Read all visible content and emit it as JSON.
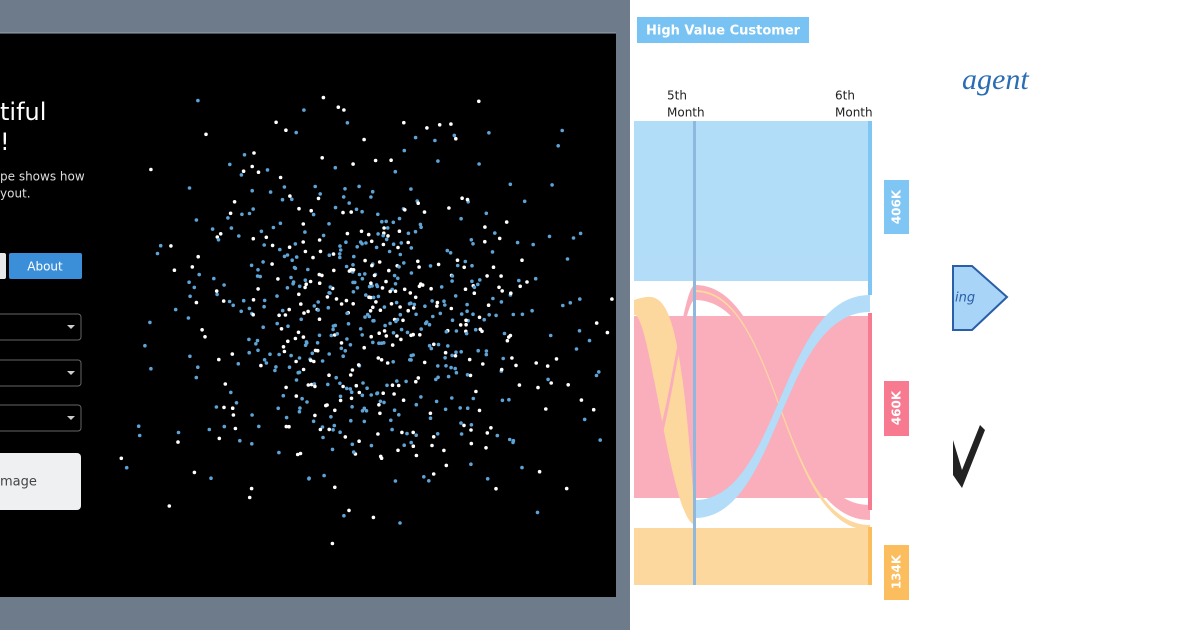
{
  "left_panel": {
    "heading_lines": [
      "tiful",
      "!"
    ],
    "description_lines": [
      "pe shows how",
      "yout."
    ],
    "button": "About",
    "image_button": "mage"
  },
  "sankey": {
    "title": "High Value Customer",
    "columns": [
      {
        "lines": [
          "5th",
          "Month"
        ]
      },
      {
        "lines": [
          "6th",
          "Month"
        ]
      }
    ],
    "node_labels": [
      "406K",
      "460K",
      "134K"
    ]
  },
  "right_fragment": {
    "word": "agent",
    "arrow_text": "ing"
  }
}
